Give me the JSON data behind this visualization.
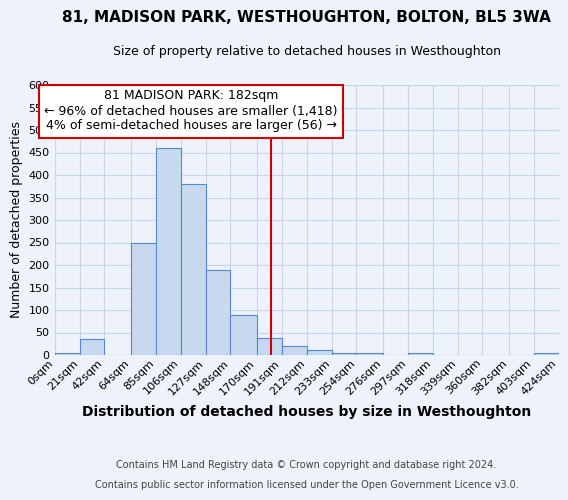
{
  "title1": "81, MADISON PARK, WESTHOUGHTON, BOLTON, BL5 3WA",
  "title2": "Size of property relative to detached houses in Westhoughton",
  "xlabel": "Distribution of detached houses by size in Westhoughton",
  "ylabel": "Number of detached properties",
  "bin_edges": [
    0,
    21,
    42,
    64,
    85,
    106,
    127,
    148,
    170,
    191,
    212,
    233,
    254,
    276,
    297,
    318,
    339,
    360,
    382,
    403,
    424
  ],
  "bar_heights": [
    5,
    35,
    0,
    250,
    460,
    380,
    190,
    90,
    38,
    20,
    12,
    5,
    5,
    0,
    5,
    0,
    0,
    0,
    0,
    5
  ],
  "bar_color": "#c8d9ef",
  "bar_edge_color": "#5588cc",
  "grid_color": "#c8d4e8",
  "background_color": "#eef2fa",
  "vline_x": 182,
  "vline_color": "#cc0000",
  "annotation_line1": "81 MADISON PARK: 182sqm",
  "annotation_line2": "← 96% of detached houses are smaller (1,418)",
  "annotation_line3": "4% of semi-detached houses are larger (56) →",
  "annotation_box_color": "#ffffff",
  "annotation_box_edge": "#cc0000",
  "footnote1": "Contains HM Land Registry data © Crown copyright and database right 2024.",
  "footnote2": "Contains public sector information licensed under the Open Government Licence v3.0.",
  "ylim": [
    0,
    600
  ],
  "yticks": [
    0,
    50,
    100,
    150,
    200,
    250,
    300,
    350,
    400,
    450,
    500,
    550,
    600
  ],
  "tick_labels": [
    "0sqm",
    "21sqm",
    "42sqm",
    "64sqm",
    "85sqm",
    "106sqm",
    "127sqm",
    "148sqm",
    "170sqm",
    "191sqm",
    "212sqm",
    "233sqm",
    "254sqm",
    "276sqm",
    "297sqm",
    "318sqm",
    "339sqm",
    "360sqm",
    "382sqm",
    "403sqm",
    "424sqm"
  ],
  "title1_fontsize": 11,
  "title2_fontsize": 9,
  "ylabel_fontsize": 9,
  "xlabel_fontsize": 10,
  "tick_fontsize": 8,
  "ytick_fontsize": 8,
  "ann_fontsize": 9,
  "footnote_fontsize": 7
}
